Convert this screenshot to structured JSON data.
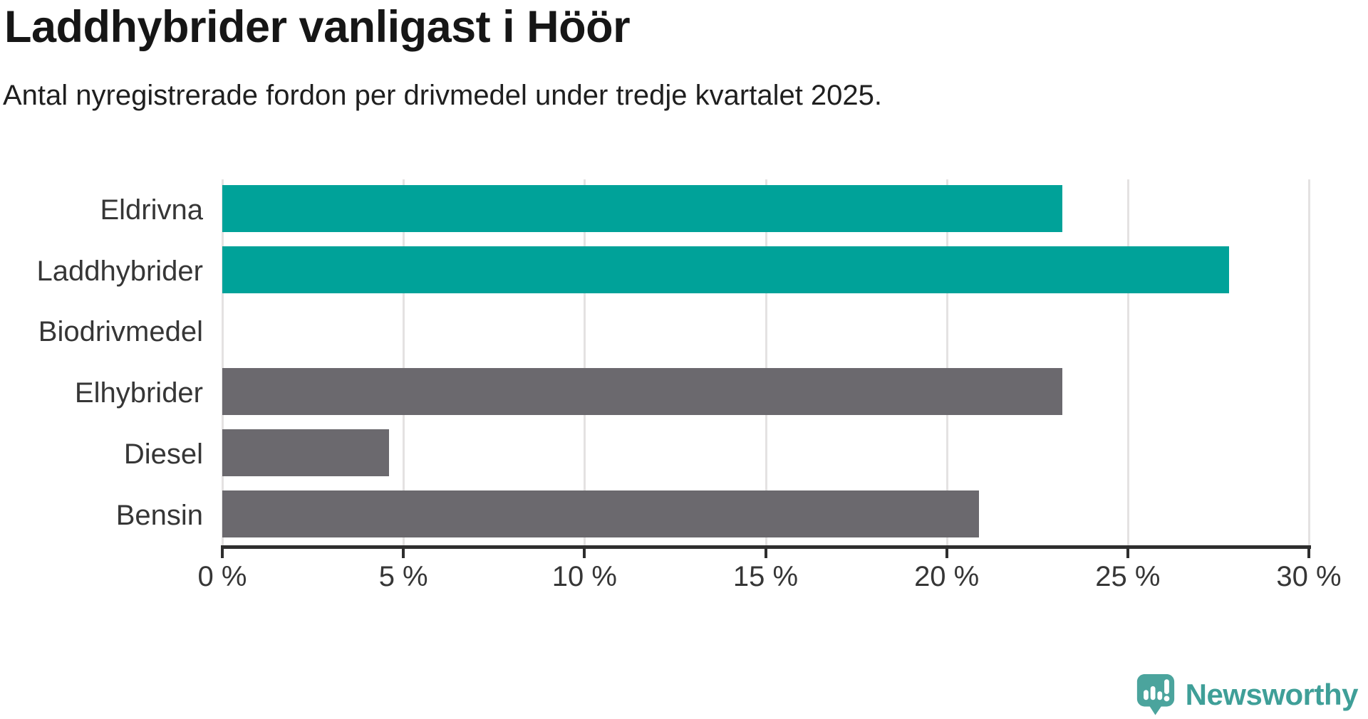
{
  "title": "Laddhybrider vanligast i Höör",
  "subtitle": "Antal nyregistrerade fordon per drivmedel under tredje kvartalet 2025.",
  "chart_data": {
    "type": "bar",
    "orientation": "horizontal",
    "title": "Laddhybrider vanligast i Höör",
    "subtitle": "Antal nyregistrerade fordon per drivmedel under tredje kvartalet 2025.",
    "categories": [
      "Eldrivna",
      "Laddhybrider",
      "Biodrivmedel",
      "Elhybrider",
      "Diesel",
      "Bensin"
    ],
    "values": [
      23.2,
      27.8,
      0,
      23.2,
      4.6,
      20.9
    ],
    "unit": "%",
    "bar_colors": [
      "#00a299",
      "#00a299",
      "#6b696e",
      "#6b696e",
      "#6b696e",
      "#6b696e"
    ],
    "highlight_color": "#00a299",
    "default_color": "#6b696e",
    "xlim": [
      0,
      30
    ],
    "xticks": [
      0,
      5,
      10,
      15,
      20,
      25,
      30
    ],
    "xtick_labels": [
      "0 %",
      "5 %",
      "10 %",
      "15 %",
      "20 %",
      "25 %",
      "30 %"
    ],
    "xlabel": "",
    "ylabel": "",
    "grid": "vertical",
    "legend": "none"
  },
  "branding": {
    "wordmark": "Newsworthy",
    "wordmark_color": "#3f9f98",
    "icon": "newsworthy-speech-bubble-bar-chart-icon",
    "icon_color": "#4ba49d",
    "icon_glyph_color": "#ffffff"
  },
  "colors": {
    "background": "#ffffff",
    "title_text": "#161616",
    "label_text": "#363636",
    "gridline": "#e4e2e2",
    "axis": "#2e2e2e"
  }
}
